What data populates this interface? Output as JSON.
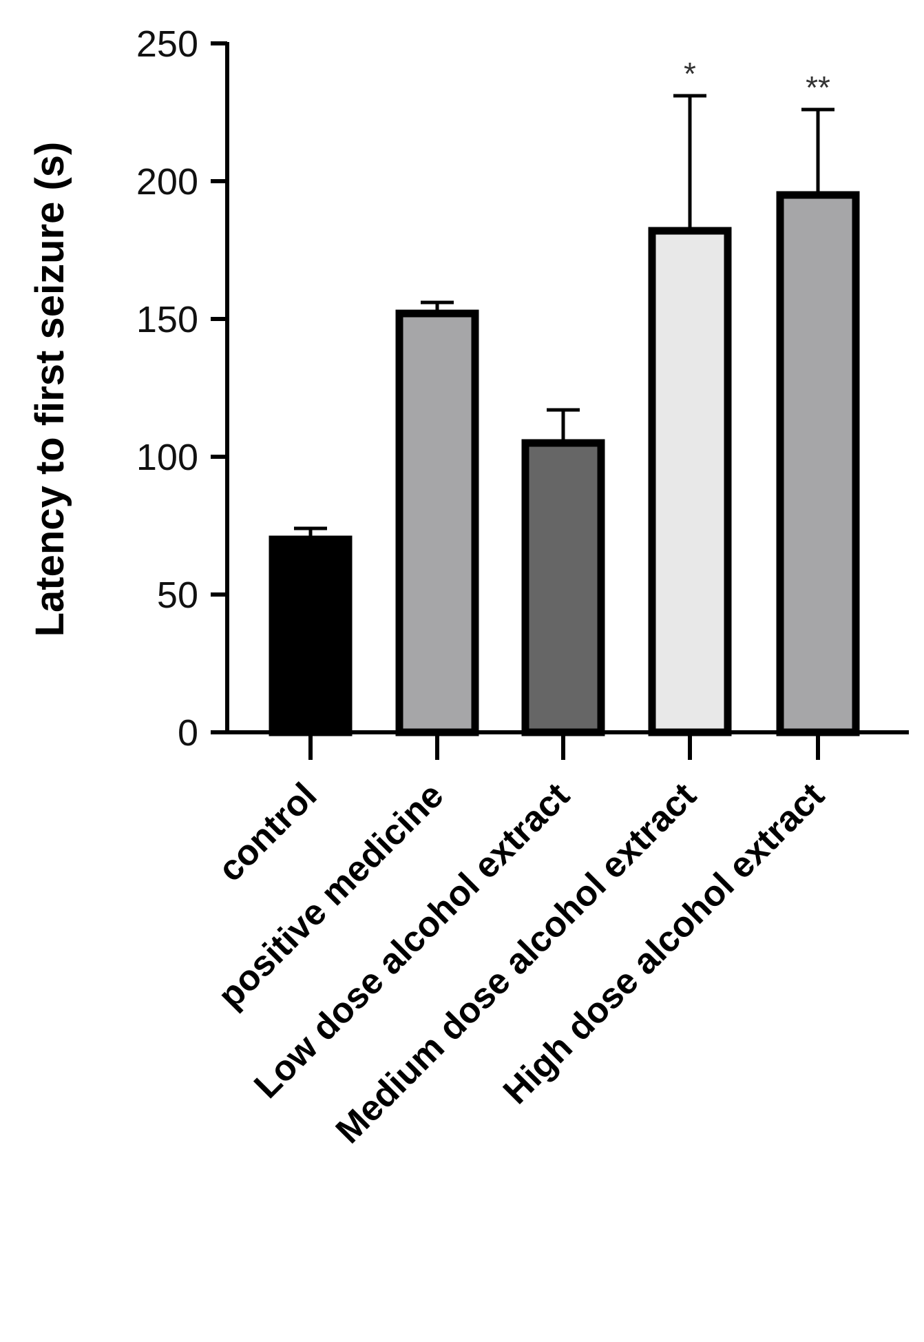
{
  "chart_data": {
    "type": "bar",
    "ylabel": "Latency to first seizure (s)",
    "xlabel": "",
    "ylim": [
      0,
      250
    ],
    "yticks": [
      0,
      50,
      100,
      150,
      200,
      250
    ],
    "categories": [
      "control",
      "positive medicine",
      "Low dose alcohol extract",
      "Medium dose alcohol extract",
      "High dose alcohol extract"
    ],
    "values": [
      70,
      152,
      105,
      182,
      195
    ],
    "errors": [
      4,
      4,
      12,
      49,
      31
    ],
    "annotations": [
      "",
      "",
      "",
      "*",
      "**"
    ],
    "colors": [
      "#000000",
      "#a6a6a8",
      "#666666",
      "#e8e8e8",
      "#a6a6a8"
    ]
  }
}
